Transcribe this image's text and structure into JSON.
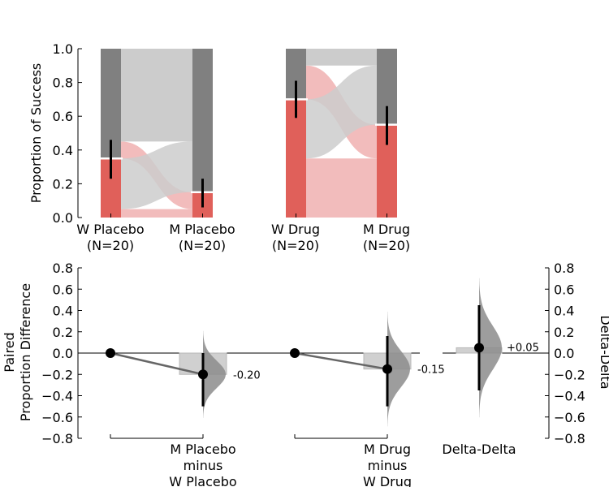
{
  "chart_data": [
    {
      "type": "sankey",
      "ylabel": "Proportion of Success",
      "ylim": [
        0,
        1
      ],
      "yticks": [
        "0.0",
        "0.2",
        "0.4",
        "0.6",
        "0.8",
        "1.0"
      ],
      "colors": {
        "success": "#e0605a",
        "failure": "#808080",
        "flow_success": "#f2bcbc",
        "flow_failure": "#cccccc"
      },
      "groups": [
        {
          "left": {
            "label": "W Placebo",
            "n_label": "(N=20)",
            "proportion": 0.35,
            "ci": [
              0.23,
              0.46
            ]
          },
          "right": {
            "label": "M Placebo",
            "n_label": "(N=20)",
            "proportion": 0.15,
            "ci": [
              0.06,
              0.23
            ]
          },
          "flows": {
            "success_to_success": 0.05,
            "success_to_failure": 0.3,
            "failure_to_success": 0.1,
            "failure_to_failure": 0.55
          }
        },
        {
          "left": {
            "label": "W Drug",
            "n_label": "(N=20)",
            "proportion": 0.7,
            "ci": [
              0.59,
              0.81
            ]
          },
          "right": {
            "label": "M Drug",
            "n_label": "(N=20)",
            "proportion": 0.55,
            "ci": [
              0.43,
              0.66
            ]
          },
          "flows": {
            "success_to_success": 0.35,
            "success_to_failure": 0.35,
            "failure_to_success": 0.2,
            "failure_to_failure": 0.1
          }
        }
      ]
    },
    {
      "type": "estimation",
      "ylabel_line1": "Paired",
      "ylabel_line2": "Proportion Difference",
      "ylim": [
        -0.8,
        0.8
      ],
      "yticks": [
        "−0.8",
        "−0.6",
        "−0.4",
        "−0.2",
        "0.0",
        "0.2",
        "0.4",
        "0.6",
        "0.8"
      ],
      "comparisons": [
        {
          "label_lines": [
            "M Placebo",
            "minus",
            "W Placebo"
          ],
          "difference": -0.2,
          "difference_label": "-0.20",
          "ci": [
            -0.5,
            0.0
          ]
        },
        {
          "label_lines": [
            "M Drug",
            "minus",
            "W Drug"
          ],
          "difference": -0.15,
          "difference_label": "-0.15",
          "ci": [
            -0.5,
            0.16
          ]
        }
      ],
      "delta_delta": {
        "label": "Delta-Delta",
        "axis_label": "Delta-Delta",
        "difference": 0.05,
        "difference_label": "+0.05",
        "ci": [
          -0.35,
          0.45
        ]
      }
    }
  ]
}
